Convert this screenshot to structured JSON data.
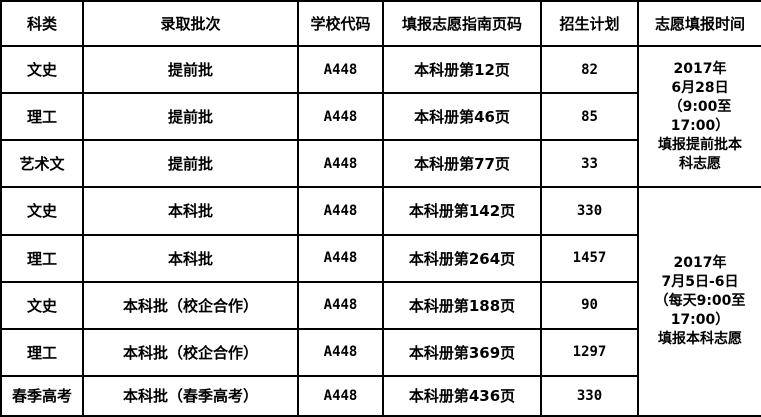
{
  "headers": [
    "科类",
    "录取批次",
    "学校代码",
    "填报志愿指南页码",
    "招生计划",
    "志愿填报时间"
  ],
  "rows": [
    {
      "category": "文史",
      "batch": "提前批",
      "code": "A448",
      "page": "本科册第12页",
      "plan": "82"
    },
    {
      "category": "理工",
      "batch": "提前批",
      "code": "A448",
      "page": "本科册第46页",
      "plan": "85"
    },
    {
      "category": "艺术文",
      "batch": "提前批",
      "code": "A448",
      "page": "本科册第77页",
      "plan": "33"
    },
    {
      "category": "文史",
      "batch": "本科批",
      "code": "A448",
      "page": "本科册第142页",
      "plan": "330"
    },
    {
      "category": "理工",
      "batch": "本科批",
      "code": "A448",
      "page": "本科册第264页",
      "plan": "1457"
    },
    {
      "category": "文史",
      "batch": "本科批（校企合作）",
      "code": "A448",
      "page": "本科册第188页",
      "plan": "90"
    },
    {
      "category": "理工",
      "batch": "本科批（校企合作）",
      "code": "A448",
      "page": "本科册第369页",
      "plan": "1297"
    },
    {
      "category": "春季高考",
      "batch": "本科批（春季高考）",
      "code": "A448",
      "page": "本科册第436页",
      "plan": "330"
    }
  ],
  "times": [
    {
      "lines": [
        "2017年",
        "6月28日",
        "（9:00至",
        "17:00）",
        "填报提前批本",
        "科志愿"
      ]
    },
    {
      "lines": [
        "2017年",
        "7月5日-6日",
        "（每天9:00至",
        "17:00）",
        "填报本科志愿"
      ]
    }
  ]
}
